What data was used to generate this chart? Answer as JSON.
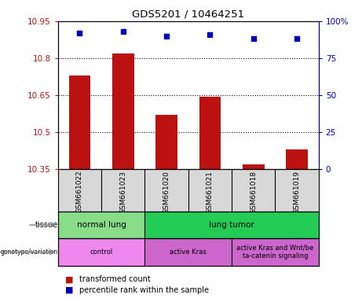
{
  "title": "GDS5201 / 10464251",
  "samples": [
    "GSM661022",
    "GSM661023",
    "GSM661020",
    "GSM661021",
    "GSM661018",
    "GSM661019"
  ],
  "transformed_count": [
    10.73,
    10.82,
    10.57,
    10.645,
    10.37,
    10.43
  ],
  "percentile_rank": [
    92,
    93,
    90,
    91,
    88,
    88
  ],
  "ylim_left": [
    10.35,
    10.95
  ],
  "ylim_right": [
    0,
    100
  ],
  "yticks_left": [
    10.35,
    10.5,
    10.65,
    10.8,
    10.95
  ],
  "yticks_right": [
    0,
    25,
    50,
    75,
    100
  ],
  "ytick_labels_left": [
    "10.35",
    "10.5",
    "10.65",
    "10.8",
    "10.95"
  ],
  "ytick_labels_right": [
    "0",
    "25",
    "50",
    "75",
    "100%"
  ],
  "bar_color": "#bb1111",
  "scatter_color": "#0000bb",
  "tissue_items": [
    {
      "label": "normal lung",
      "start": 0,
      "end": 2,
      "color": "#88dd88"
    },
    {
      "label": "lung tumor",
      "start": 2,
      "end": 6,
      "color": "#22cc55"
    }
  ],
  "genotype_items": [
    {
      "label": "control",
      "start": 0,
      "end": 2,
      "color": "#ee88ee"
    },
    {
      "label": "active Kras",
      "start": 2,
      "end": 4,
      "color": "#cc66cc"
    },
    {
      "label": "active Kras and Wnt/be\nta-catenin signaling",
      "start": 4,
      "end": 6,
      "color": "#cc66cc"
    }
  ],
  "legend_items": [
    {
      "color": "#bb1111",
      "label": "transformed count"
    },
    {
      "color": "#0000bb",
      "label": "percentile rank within the sample"
    }
  ],
  "sample_bg": "#d8d8d8",
  "bar_baseline": 10.35,
  "bar_width": 0.5
}
